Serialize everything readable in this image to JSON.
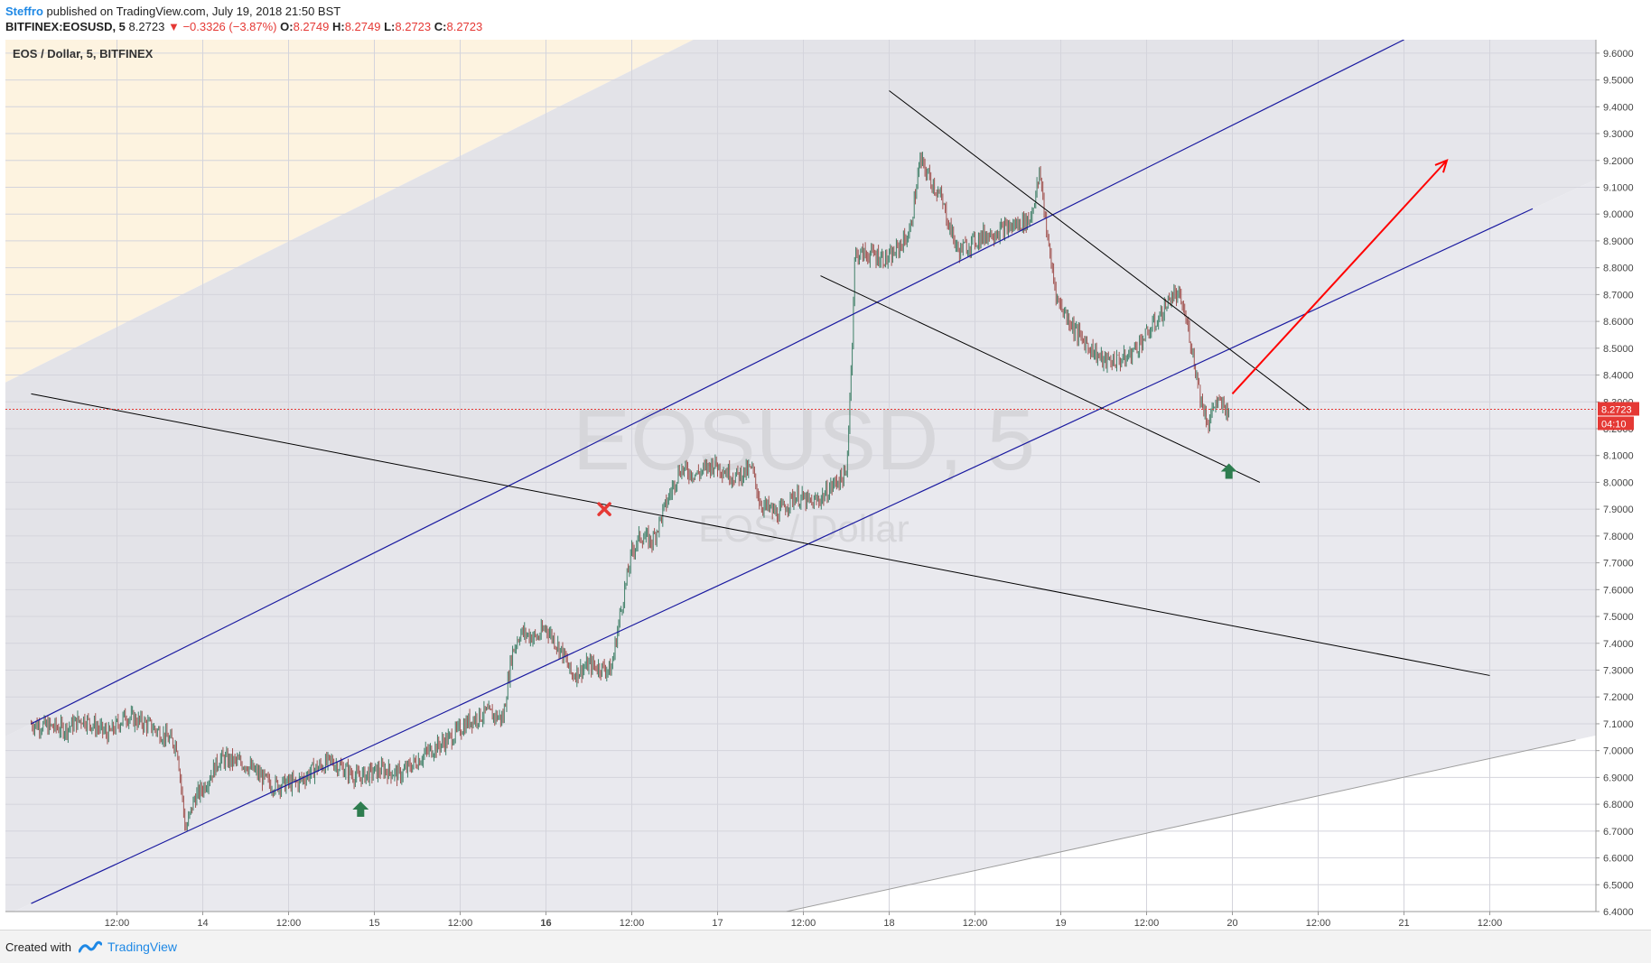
{
  "header": {
    "author": "Steffro",
    "published_text": "published on TradingView.com, July 19, 2018 21:50 BST"
  },
  "symbol_line": {
    "symbol": "BITFINEX:EOSUSD, 5",
    "last": "8.2723",
    "change": "−0.3326 (−3.87%)",
    "o_label": "O:",
    "o": "8.2749",
    "h_label": "H:",
    "h": "8.2749",
    "l_label": "L:",
    "l": "8.2723",
    "c_label": "C:",
    "c": "8.2723"
  },
  "footer": {
    "created_with": "Created with",
    "brand": "TradingView"
  },
  "colors": {
    "up_candle": "#3f7f67",
    "down_candle": "#a0524f",
    "channel": "#1a1aa0",
    "trend_black": "#000000",
    "target_arrow": "#ff0000",
    "up_marker": "#2e7d4f",
    "price_label": "#e53935",
    "bg_upper_band": "#fdf3e0",
    "bg_gray_band": "#e9e9ee"
  },
  "chart_data": {
    "type": "candlestick",
    "title": "EOS / Dollar, 5, BITFINEX",
    "watermark_symbol": "EOSUSD, 5",
    "watermark_name": "EOS / Dollar",
    "y_range": [
      6.4,
      9.65
    ],
    "y_ticks": [
      "9.6000",
      "9.5000",
      "9.4000",
      "9.3000",
      "9.2000",
      "9.1000",
      "9.0000",
      "8.9000",
      "8.8000",
      "8.7000",
      "8.6000",
      "8.5000",
      "8.4000",
      "8.3000",
      "8.2000",
      "8.1000",
      "8.0000",
      "7.9000",
      "7.8000",
      "7.7000",
      "7.6000",
      "7.5000",
      "7.4000",
      "7.3000",
      "7.2000",
      "7.1000",
      "7.0000",
      "6.9000",
      "6.8000",
      "6.7000",
      "6.6000",
      "6.5000",
      "6.4000"
    ],
    "x_ticks": [
      {
        "label": "12:00",
        "t": 0.5
      },
      {
        "label": "14",
        "t": 1.0
      },
      {
        "label": "12:00",
        "t": 1.5
      },
      {
        "label": "15",
        "t": 2.0
      },
      {
        "label": "12:00",
        "t": 2.5
      },
      {
        "label": "16",
        "t": 3.0
      },
      {
        "label": "12:00",
        "t": 3.5
      },
      {
        "label": "17",
        "t": 4.0
      },
      {
        "label": "12:00",
        "t": 4.5
      },
      {
        "label": "18",
        "t": 5.0
      },
      {
        "label": "12:00",
        "t": 5.5
      },
      {
        "label": "19",
        "t": 6.0
      },
      {
        "label": "12:00",
        "t": 6.5
      },
      {
        "label": "20",
        "t": 7.0
      },
      {
        "label": "12:00",
        "t": 7.5
      },
      {
        "label": "21",
        "t": 8.0
      },
      {
        "label": "12:00",
        "t": 8.5
      }
    ],
    "x_note": "t = days since July 13 00:00",
    "last_price": "8.2723",
    "countdown": "04:10",
    "price_path": [
      [
        0.0,
        7.1
      ],
      [
        0.2,
        7.08
      ],
      [
        0.3,
        7.12
      ],
      [
        0.45,
        7.06
      ],
      [
        0.55,
        7.13
      ],
      [
        0.7,
        7.09
      ],
      [
        0.85,
        7.02
      ],
      [
        0.9,
        6.7
      ],
      [
        0.95,
        6.82
      ],
      [
        1.0,
        6.86
      ],
      [
        1.1,
        6.97
      ],
      [
        1.25,
        6.95
      ],
      [
        1.4,
        6.87
      ],
      [
        1.55,
        6.88
      ],
      [
        1.65,
        6.93
      ],
      [
        1.75,
        6.96
      ],
      [
        1.9,
        6.9
      ],
      [
        2.05,
        6.93
      ],
      [
        2.15,
        6.91
      ],
      [
        2.3,
        6.99
      ],
      [
        2.45,
        7.05
      ],
      [
        2.55,
        7.11
      ],
      [
        2.65,
        7.14
      ],
      [
        2.75,
        7.12
      ],
      [
        2.8,
        7.36
      ],
      [
        2.85,
        7.44
      ],
      [
        2.95,
        7.42
      ],
      [
        3.0,
        7.46
      ],
      [
        3.1,
        7.36
      ],
      [
        3.15,
        7.28
      ],
      [
        3.25,
        7.32
      ],
      [
        3.38,
        7.3
      ],
      [
        3.43,
        7.5
      ],
      [
        3.5,
        7.74
      ],
      [
        3.55,
        7.8
      ],
      [
        3.62,
        7.78
      ],
      [
        3.7,
        7.92
      ],
      [
        3.78,
        8.05
      ],
      [
        3.88,
        8.03
      ],
      [
        3.98,
        8.07
      ],
      [
        4.1,
        8.02
      ],
      [
        4.2,
        8.05
      ],
      [
        4.25,
        7.92
      ],
      [
        4.35,
        7.88
      ],
      [
        4.45,
        7.95
      ],
      [
        4.55,
        7.92
      ],
      [
        4.62,
        7.95
      ],
      [
        4.7,
        8.01
      ],
      [
        4.75,
        8.02
      ],
      [
        4.78,
        8.45
      ],
      [
        4.8,
        8.85
      ],
      [
        4.9,
        8.85
      ],
      [
        5.0,
        8.83
      ],
      [
        5.12,
        8.93
      ],
      [
        5.18,
        9.2
      ],
      [
        5.3,
        9.06
      ],
      [
        5.4,
        8.86
      ],
      [
        5.55,
        8.92
      ],
      [
        5.7,
        8.95
      ],
      [
        5.82,
        8.98
      ],
      [
        5.88,
        9.15
      ],
      [
        5.93,
        8.87
      ],
      [
        5.98,
        8.68
      ],
      [
        6.1,
        8.55
      ],
      [
        6.25,
        8.45
      ],
      [
        6.38,
        8.46
      ],
      [
        6.5,
        8.55
      ],
      [
        6.58,
        8.62
      ],
      [
        6.65,
        8.7
      ],
      [
        6.7,
        8.68
      ],
      [
        6.75,
        8.55
      ],
      [
        6.82,
        8.3
      ],
      [
        6.86,
        8.22
      ],
      [
        6.9,
        8.3
      ],
      [
        6.95,
        8.28
      ],
      [
        6.98,
        8.27
      ]
    ],
    "drawn_lines": [
      {
        "name": "upper-channel",
        "p1": {
          "t": 0.0,
          "y": 7.1
        },
        "p2": {
          "t": 8.0,
          "y": 9.65
        }
      },
      {
        "name": "lower-channel",
        "p1": {
          "t": 0.0,
          "y": 6.43
        },
        "p2": {
          "t": 8.75,
          "y": 9.02
        }
      },
      {
        "name": "long-downtrend",
        "p1": {
          "t": 0.0,
          "y": 8.33
        },
        "p2": {
          "t": 8.5,
          "y": 7.28
        }
      },
      {
        "name": "wedge-upper",
        "p1": {
          "t": 5.0,
          "y": 9.46
        },
        "p2": {
          "t": 7.45,
          "y": 8.27
        }
      },
      {
        "name": "wedge-lower",
        "p1": {
          "t": 4.6,
          "y": 8.77
        },
        "p2": {
          "t": 7.16,
          "y": 8.0
        }
      },
      {
        "name": "lower-gray-band",
        "p1": {
          "t": 4.4,
          "y": 6.4
        },
        "p2": {
          "t": 9.0,
          "y": 7.04
        }
      }
    ],
    "target_arrow": {
      "p1": {
        "t": 7.0,
        "y": 8.33
      },
      "p2": {
        "t": 8.25,
        "y": 9.2
      }
    },
    "up_markers": [
      {
        "t": 1.92,
        "y": 6.78
      },
      {
        "t": 6.98,
        "y": 8.04
      }
    ],
    "x_marker": {
      "t": 3.34,
      "y": 7.9
    }
  }
}
